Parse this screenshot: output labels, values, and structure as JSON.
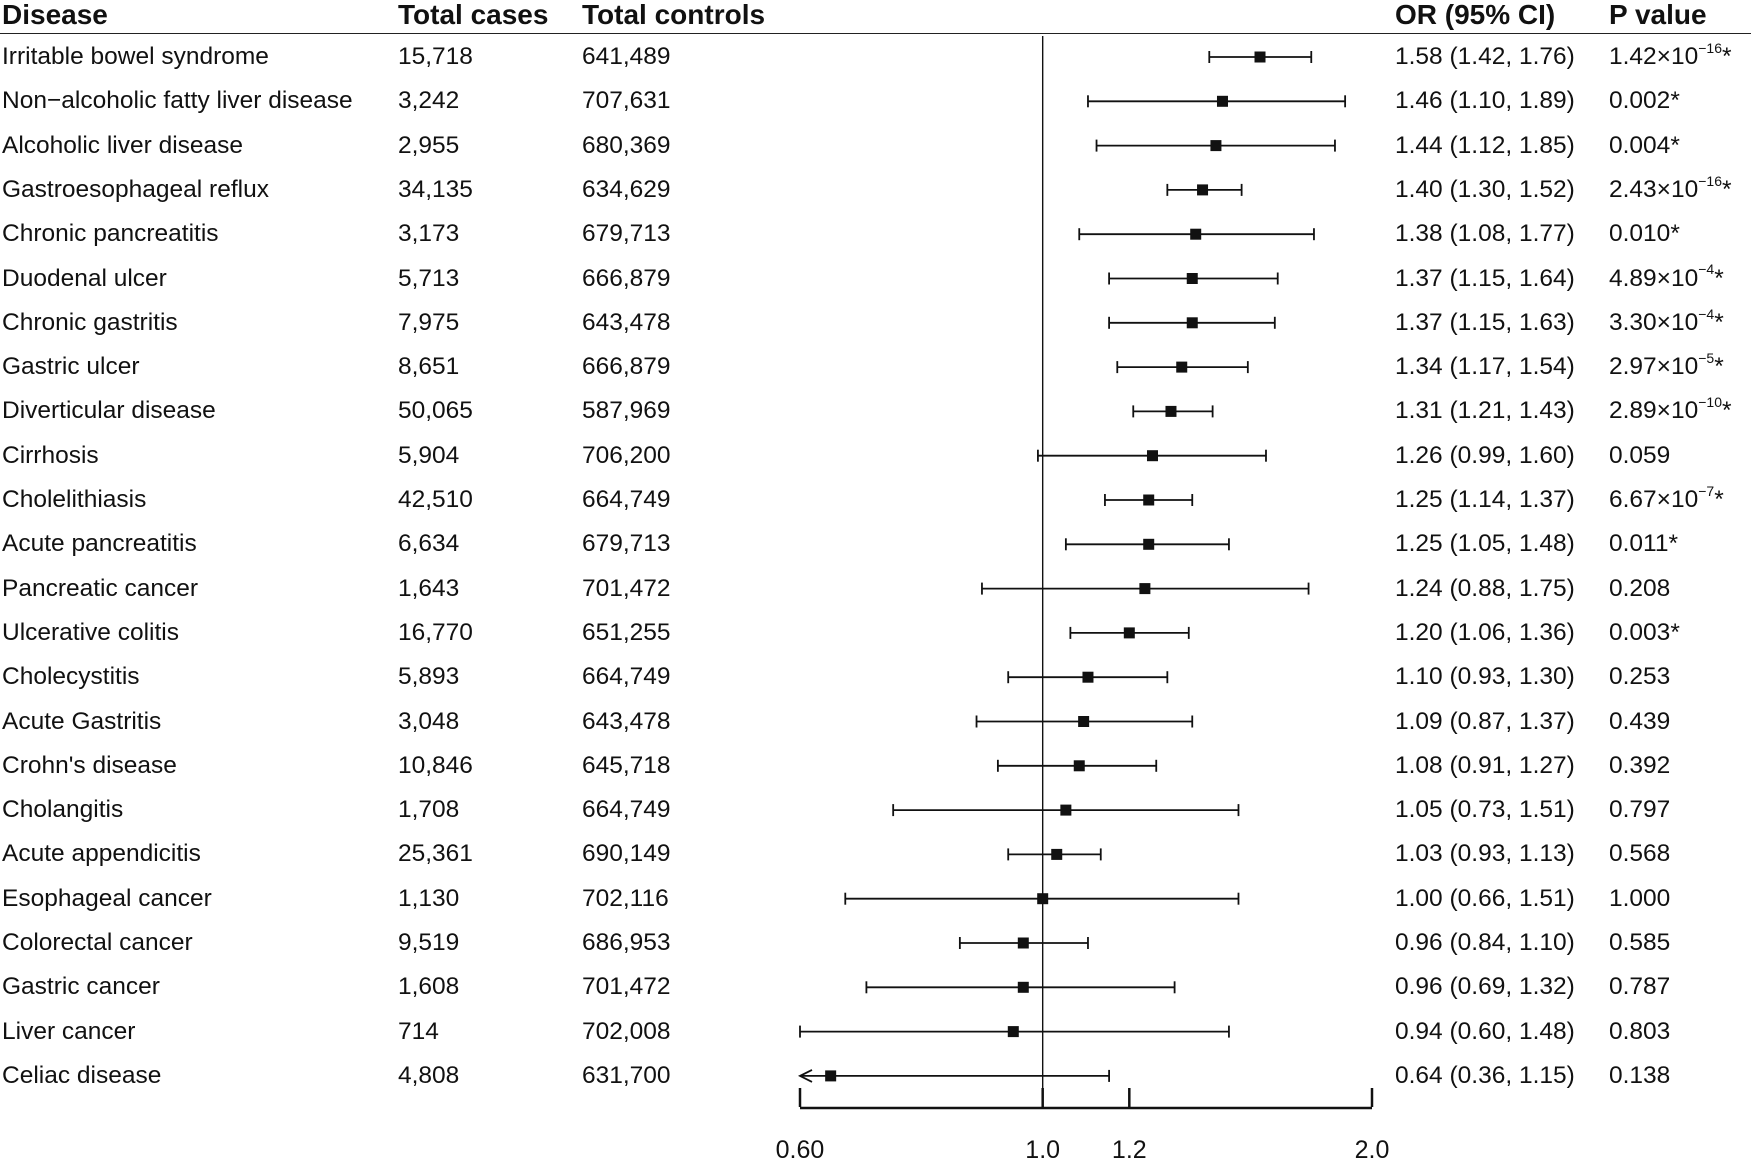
{
  "headers": {
    "disease": "Disease",
    "cases": "Total cases",
    "controls": "Total controls",
    "or_ci": "OR (95% CI)",
    "p_value": "P value"
  },
  "chart_data": {
    "type": "forest",
    "xlabel": "",
    "x_scale": "log",
    "xlim": [
      0.6,
      2.0
    ],
    "reference_line": 1.0,
    "x_ticks": [
      0.6,
      1.0,
      1.2,
      2.0
    ],
    "x_tick_labels": [
      "0.60",
      "1.0",
      "1.2",
      "2.0"
    ],
    "rows": [
      {
        "disease": "Irritable bowel syndrome",
        "cases": "15,718",
        "controls": "641,489",
        "or": 1.58,
        "lo": 1.42,
        "hi": 1.76,
        "or_text": "1.58 (1.42, 1.76)",
        "p_base": "1.42×10",
        "p_exp": "−16",
        "p_star": "*"
      },
      {
        "disease": "Non−alcoholic fatty liver disease",
        "cases": "3,242",
        "controls": "707,631",
        "or": 1.46,
        "lo": 1.1,
        "hi": 1.89,
        "or_text": "1.46 (1.10, 1.89)",
        "p_base": "0.002",
        "p_exp": "",
        "p_star": "*"
      },
      {
        "disease": "Alcoholic liver disease",
        "cases": "2,955",
        "controls": "680,369",
        "or": 1.44,
        "lo": 1.12,
        "hi": 1.85,
        "or_text": "1.44 (1.12, 1.85)",
        "p_base": "0.004",
        "p_exp": "",
        "p_star": "*"
      },
      {
        "disease": "Gastroesophageal reflux",
        "cases": "34,135",
        "controls": "634,629",
        "or": 1.4,
        "lo": 1.3,
        "hi": 1.52,
        "or_text": "1.40 (1.30, 1.52)",
        "p_base": "2.43×10",
        "p_exp": "−16",
        "p_star": "*"
      },
      {
        "disease": "Chronic pancreatitis",
        "cases": "3,173",
        "controls": "679,713",
        "or": 1.38,
        "lo": 1.08,
        "hi": 1.77,
        "or_text": "1.38 (1.08, 1.77)",
        "p_base": "0.010",
        "p_exp": "",
        "p_star": "*"
      },
      {
        "disease": "Duodenal ulcer",
        "cases": "5,713",
        "controls": "666,879",
        "or": 1.37,
        "lo": 1.15,
        "hi": 1.64,
        "or_text": "1.37 (1.15, 1.64)",
        "p_base": "4.89×10",
        "p_exp": "−4",
        "p_star": "*"
      },
      {
        "disease": "Chronic gastritis",
        "cases": "7,975",
        "controls": "643,478",
        "or": 1.37,
        "lo": 1.15,
        "hi": 1.63,
        "or_text": "1.37 (1.15, 1.63)",
        "p_base": "3.30×10",
        "p_exp": "−4",
        "p_star": "*"
      },
      {
        "disease": "Gastric ulcer",
        "cases": "8,651",
        "controls": "666,879",
        "or": 1.34,
        "lo": 1.17,
        "hi": 1.54,
        "or_text": "1.34 (1.17, 1.54)",
        "p_base": "2.97×10",
        "p_exp": "−5",
        "p_star": "*"
      },
      {
        "disease": "Diverticular disease",
        "cases": "50,065",
        "controls": "587,969",
        "or": 1.31,
        "lo": 1.21,
        "hi": 1.43,
        "or_text": "1.31 (1.21, 1.43)",
        "p_base": "2.89×10",
        "p_exp": "−10",
        "p_star": "*"
      },
      {
        "disease": "Cirrhosis",
        "cases": "5,904",
        "controls": "706,200",
        "or": 1.26,
        "lo": 0.99,
        "hi": 1.6,
        "or_text": "1.26 (0.99, 1.60)",
        "p_base": "0.059",
        "p_exp": "",
        "p_star": ""
      },
      {
        "disease": "Cholelithiasis",
        "cases": "42,510",
        "controls": "664,749",
        "or": 1.25,
        "lo": 1.14,
        "hi": 1.37,
        "or_text": "1.25 (1.14, 1.37)",
        "p_base": "6.67×10",
        "p_exp": "−7",
        "p_star": "*"
      },
      {
        "disease": "Acute pancreatitis",
        "cases": "6,634",
        "controls": "679,713",
        "or": 1.25,
        "lo": 1.05,
        "hi": 1.48,
        "or_text": "1.25 (1.05, 1.48)",
        "p_base": "0.011",
        "p_exp": "",
        "p_star": "*"
      },
      {
        "disease": "Pancreatic cancer",
        "cases": "1,643",
        "controls": "701,472",
        "or": 1.24,
        "lo": 0.88,
        "hi": 1.75,
        "or_text": "1.24 (0.88, 1.75)",
        "p_base": "0.208",
        "p_exp": "",
        "p_star": ""
      },
      {
        "disease": "Ulcerative colitis",
        "cases": "16,770",
        "controls": "651,255",
        "or": 1.2,
        "lo": 1.06,
        "hi": 1.36,
        "or_text": "1.20 (1.06, 1.36)",
        "p_base": "0.003",
        "p_exp": "",
        "p_star": "*"
      },
      {
        "disease": "Cholecystitis",
        "cases": "5,893",
        "controls": "664,749",
        "or": 1.1,
        "lo": 0.93,
        "hi": 1.3,
        "or_text": "1.10 (0.93, 1.30)",
        "p_base": "0.253",
        "p_exp": "",
        "p_star": ""
      },
      {
        "disease": "Acute Gastritis",
        "cases": "3,048",
        "controls": "643,478",
        "or": 1.09,
        "lo": 0.87,
        "hi": 1.37,
        "or_text": "1.09 (0.87, 1.37)",
        "p_base": "0.439",
        "p_exp": "",
        "p_star": ""
      },
      {
        "disease": "Crohn's disease",
        "cases": "10,846",
        "controls": "645,718",
        "or": 1.08,
        "lo": 0.91,
        "hi": 1.27,
        "or_text": "1.08 (0.91, 1.27)",
        "p_base": "0.392",
        "p_exp": "",
        "p_star": ""
      },
      {
        "disease": "Cholangitis",
        "cases": "1,708",
        "controls": "664,749",
        "or": 1.05,
        "lo": 0.73,
        "hi": 1.51,
        "or_text": "1.05 (0.73, 1.51)",
        "p_base": "0.797",
        "p_exp": "",
        "p_star": ""
      },
      {
        "disease": "Acute appendicitis",
        "cases": "25,361",
        "controls": "690,149",
        "or": 1.03,
        "lo": 0.93,
        "hi": 1.13,
        "or_text": "1.03 (0.93, 1.13)",
        "p_base": "0.568",
        "p_exp": "",
        "p_star": ""
      },
      {
        "disease": "Esophageal cancer",
        "cases": "1,130",
        "controls": "702,116",
        "or": 1.0,
        "lo": 0.66,
        "hi": 1.51,
        "or_text": "1.00 (0.66, 1.51)",
        "p_base": "1.000",
        "p_exp": "",
        "p_star": ""
      },
      {
        "disease": "Colorectal cancer",
        "cases": "9,519",
        "controls": "686,953",
        "or": 0.96,
        "lo": 0.84,
        "hi": 1.1,
        "or_text": "0.96 (0.84, 1.10)",
        "p_base": "0.585",
        "p_exp": "",
        "p_star": ""
      },
      {
        "disease": "Gastric cancer",
        "cases": "1,608",
        "controls": "701,472",
        "or": 0.96,
        "lo": 0.69,
        "hi": 1.32,
        "or_text": "0.96 (0.69, 1.32)",
        "p_base": "0.787",
        "p_exp": "",
        "p_star": ""
      },
      {
        "disease": "Liver cancer",
        "cases": "714",
        "controls": "702,008",
        "or": 0.94,
        "lo": 0.6,
        "hi": 1.48,
        "or_text": "0.94 (0.60, 1.48)",
        "p_base": "0.803",
        "p_exp": "",
        "p_star": ""
      },
      {
        "disease": "Celiac disease",
        "cases": "4,808",
        "controls": "631,700",
        "or": 0.64,
        "lo": 0.36,
        "hi": 1.15,
        "or_text": "0.64 (0.36, 1.15)",
        "p_base": "0.138",
        "p_exp": "",
        "p_star": ""
      }
    ]
  }
}
